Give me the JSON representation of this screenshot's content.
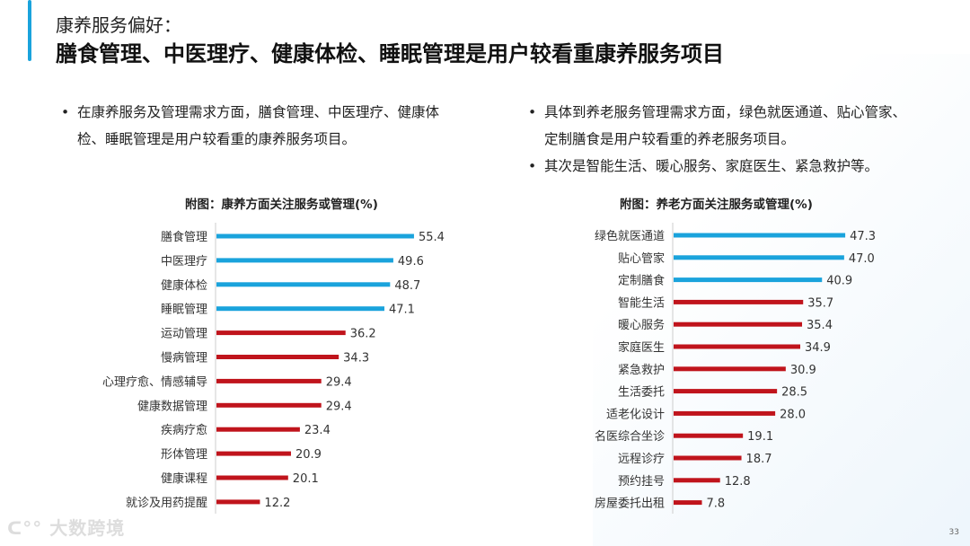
{
  "header": {
    "subtitle": "康养服务偏好：",
    "title": "膳食管理、中医理疗、健康体检、睡眠管理是用户较看重康养服务项目"
  },
  "left_text": [
    "在康养服务及管理需求方面，膳食管理、中医理疗、健康体检、睡眠管理是用户较看重的康养服务项目。"
  ],
  "right_text": [
    "具体到养老服务管理需求方面，绿色就医通道、贴心管家、定制膳食是用户较看重的养老服务项目。",
    "其次是智能生活、暖心服务、家庭医生、紧急救护等。"
  ],
  "colors": {
    "highlight": "#1aa3dc",
    "normal": "#c0141c",
    "accent": "#1aa3dc"
  },
  "chart_data": [
    {
      "type": "bar",
      "orientation": "horizontal",
      "title": "附图：康养方面关注服务或管理(%)",
      "categories": [
        "膳食管理",
        "中医理疗",
        "健康体检",
        "睡眠管理",
        "运动管理",
        "慢病管理",
        "心理疗愈、情感辅导",
        "健康数据管理",
        "疾病疗愈",
        "形体管理",
        "健康课程",
        "就诊及用药提醒"
      ],
      "values": [
        55.4,
        49.6,
        48.7,
        47.1,
        36.2,
        34.3,
        29.4,
        29.4,
        23.4,
        20.9,
        20.1,
        12.2
      ],
      "highlighted_top": 4
    },
    {
      "type": "bar",
      "orientation": "horizontal",
      "title": "附图：养老方面关注服务或管理(%)",
      "categories": [
        "绿色就医通道",
        "贴心管家",
        "定制膳食",
        "智能生活",
        "暖心服务",
        "家庭医生",
        "紧急救护",
        "生活委托",
        "适老化设计",
        "名医综合坐诊",
        "远程诊疗",
        "预约挂号",
        "房屋委托出租"
      ],
      "values": [
        47.3,
        47.0,
        40.9,
        35.7,
        35.4,
        34.9,
        30.9,
        28.5,
        28.0,
        19.1,
        18.7,
        12.8,
        7.8
      ],
      "highlighted_top": 3
    }
  ],
  "footer": {
    "logo": "大数跨境",
    "page": "33"
  }
}
